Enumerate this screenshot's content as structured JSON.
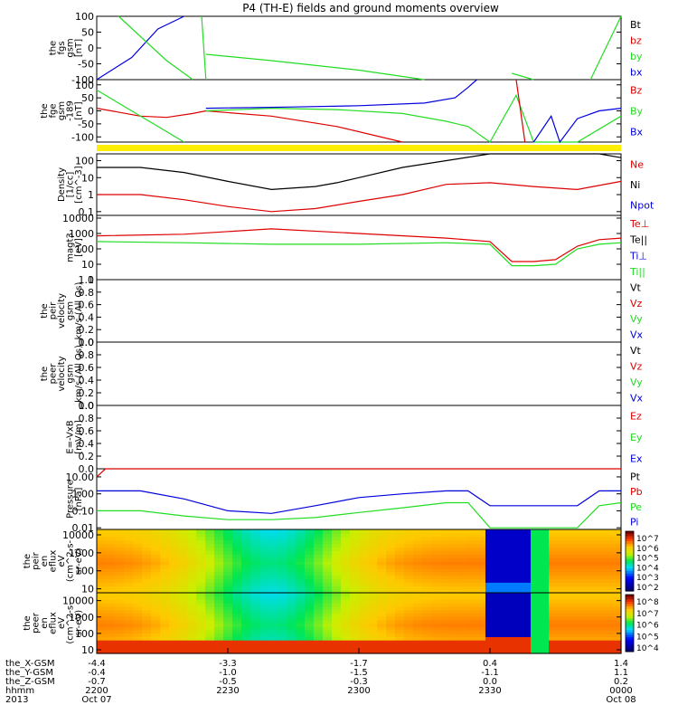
{
  "title": "P4 (TH-E) fields and ground moments overview",
  "colors": {
    "black": "#000000",
    "red": "#dd0000",
    "green": "#22dd22",
    "blue": "#0000dd",
    "yellow": "#ffee00"
  },
  "panels": [
    {
      "ylabel": [
        "the",
        "fgs",
        "gsm",
        "[nT]"
      ],
      "yticks": [
        {
          "v": 100,
          "t": "100"
        },
        {
          "v": 50,
          "t": "50"
        },
        {
          "v": 0,
          "t": "0"
        },
        {
          "v": -50,
          "t": "-50"
        },
        {
          "v": -100,
          "t": "-100"
        }
      ],
      "ylim": [
        -100,
        100
      ],
      "log": false,
      "legend": [
        {
          "text": "Bt",
          "color": "black"
        },
        {
          "text": "bz",
          "color": "red"
        },
        {
          "text": "by",
          "color": "green"
        },
        {
          "text": "bx",
          "color": "blue"
        }
      ]
    },
    {
      "ylabel": [
        "the",
        "fge",
        "gsm",
        "-189",
        "[nT]"
      ],
      "yticks": [
        {
          "v": 100,
          "t": "100"
        },
        {
          "v": 50,
          "t": "50"
        },
        {
          "v": 0,
          "t": "0"
        },
        {
          "v": -50,
          "t": "-50"
        },
        {
          "v": -100,
          "t": "-100"
        }
      ],
      "ylim": [
        -120,
        120
      ],
      "log": false,
      "legend": [
        {
          "text": "Bz",
          "color": "red"
        },
        {
          "text": "By",
          "color": "green"
        },
        {
          "text": "Bx",
          "color": "blue"
        }
      ]
    },
    {
      "ylabel": [
        "Density",
        "[1/cc]",
        "[cm^-3]"
      ],
      "yticks": [
        {
          "v": 100,
          "t": "100"
        },
        {
          "v": 10,
          "t": "10"
        },
        {
          "v": 1,
          "t": "1"
        },
        {
          "v": 0.1,
          "t": "0.1"
        }
      ],
      "ylim": [
        0.06,
        250
      ],
      "log": true,
      "legend": [
        {
          "text": "Ne",
          "color": "red"
        },
        {
          "text": "Ni",
          "color": "black"
        },
        {
          "text": "Npot",
          "color": "blue"
        }
      ]
    },
    {
      "ylabel": [
        "magt3",
        "[eV]"
      ],
      "yticks": [
        {
          "v": 10000,
          "t": "10000"
        },
        {
          "v": 1000,
          "t": "1000"
        },
        {
          "v": 100,
          "t": "100"
        },
        {
          "v": 10,
          "t": "10"
        },
        {
          "v": 1,
          "t": "1"
        }
      ],
      "ylim": [
        1,
        15000
      ],
      "log": true,
      "legend": [
        {
          "text": "Te⊥",
          "color": "red"
        },
        {
          "text": "Te||",
          "color": "black"
        },
        {
          "text": "Ti⊥",
          "color": "blue"
        },
        {
          "text": "Ti||",
          "color": "green"
        }
      ]
    },
    {
      "ylabel": [
        "the",
        "peir",
        "velocity",
        "gsm",
        "km/s (All Qs)"
      ],
      "yticks": [
        {
          "v": 1,
          "t": "1.0"
        },
        {
          "v": 0.8,
          "t": "0.8"
        },
        {
          "v": 0.6,
          "t": "0.6"
        },
        {
          "v": 0.4,
          "t": "0.4"
        },
        {
          "v": 0.2,
          "t": "0.2"
        },
        {
          "v": 0,
          "t": "0.0"
        }
      ],
      "ylim": [
        0,
        1
      ],
      "log": false,
      "legend": [
        {
          "text": "Vt",
          "color": "black"
        },
        {
          "text": "Vz",
          "color": "red"
        },
        {
          "text": "Vy",
          "color": "green"
        },
        {
          "text": "Vx",
          "color": "blue"
        }
      ]
    },
    {
      "ylabel": [
        "the",
        "peer",
        "velocity",
        "gsm",
        "km/s (All Qs)"
      ],
      "yticks": [
        {
          "v": 1,
          "t": "1.0"
        },
        {
          "v": 0.8,
          "t": "0.8"
        },
        {
          "v": 0.6,
          "t": "0.6"
        },
        {
          "v": 0.4,
          "t": "0.4"
        },
        {
          "v": 0.2,
          "t": "0.2"
        },
        {
          "v": 0,
          "t": "0.0"
        }
      ],
      "ylim": [
        0,
        1
      ],
      "log": false,
      "legend": [
        {
          "text": "Vt",
          "color": "black"
        },
        {
          "text": "Vz",
          "color": "red"
        },
        {
          "text": "Vy",
          "color": "green"
        },
        {
          "text": "Vx",
          "color": "blue"
        }
      ]
    },
    {
      "ylabel": [
        "E=-VxB",
        "[mV/m]"
      ],
      "yticks": [
        {
          "v": 1,
          "t": "1.0"
        },
        {
          "v": 0.8,
          "t": "0.8"
        },
        {
          "v": 0.6,
          "t": "0.6"
        },
        {
          "v": 0.4,
          "t": "0.4"
        },
        {
          "v": 0.2,
          "t": "0.2"
        },
        {
          "v": 0,
          "t": "0.0"
        }
      ],
      "ylim": [
        0,
        1
      ],
      "log": false,
      "legend": [
        {
          "text": "Ez",
          "color": "red"
        },
        {
          "text": "Ey",
          "color": "green"
        },
        {
          "text": "Ex",
          "color": "blue"
        }
      ]
    },
    {
      "ylabel": [
        "Pressure",
        "[nPa]"
      ],
      "yticks": [
        {
          "v": 10,
          "t": "10.00"
        },
        {
          "v": 1,
          "t": "1.00"
        },
        {
          "v": 0.1,
          "t": "0.10"
        },
        {
          "v": 0.01,
          "t": "0.01"
        }
      ],
      "ylim": [
        0.008,
        30
      ],
      "log": true,
      "legend": [
        {
          "text": "Pt",
          "color": "black"
        },
        {
          "text": "Pb",
          "color": "red"
        },
        {
          "text": "Pe",
          "color": "green"
        },
        {
          "text": "Pi",
          "color": "blue"
        }
      ]
    },
    {
      "ylabel": [
        "the",
        "peir",
        "en",
        "eflux",
        "eV",
        "(cm^2-s-",
        "sr-eV)"
      ],
      "yticks": [
        {
          "v": 10000,
          "t": "10000"
        },
        {
          "v": 1000,
          "t": "1000"
        },
        {
          "v": 100,
          "t": "100"
        },
        {
          "v": 10,
          "t": "10"
        }
      ],
      "ylim": [
        6,
        20000
      ],
      "log": true,
      "spectrogram": true,
      "colorbar": [
        "10^7",
        "10^6",
        "10^5",
        "10^4",
        "10^3",
        "10^2"
      ],
      "legend": []
    },
    {
      "ylabel": [
        "the",
        "peer",
        "en",
        "eflux",
        "eV",
        "(cm^2-s-",
        "sr-eV)"
      ],
      "yticks": [
        {
          "v": 10000,
          "t": "10000"
        },
        {
          "v": 1000,
          "t": "1000"
        },
        {
          "v": 100,
          "t": "100"
        },
        {
          "v": 10,
          "t": "10"
        }
      ],
      "ylim": [
        6,
        30000
      ],
      "log": true,
      "spectrogram": true,
      "colorbar": [
        "10^8",
        "10^7",
        "10^6",
        "10^5",
        "10^4"
      ],
      "legend": []
    }
  ],
  "xaxis": {
    "rows": [
      {
        "label": "the_X-GSM",
        "values": [
          "-4.4",
          "-3.3",
          "-1.7",
          "0.4",
          "1.4"
        ]
      },
      {
        "label": "the_Y-GSM",
        "values": [
          "-0.4",
          "-1.0",
          "-1.5",
          "-1.1",
          "1.1"
        ]
      },
      {
        "label": "the_Z-GSM",
        "values": [
          "-0.7",
          "-0.5",
          "-0.3",
          "0.0",
          "0.2"
        ]
      },
      {
        "label": "hhmm",
        "values": [
          "2200",
          "2230",
          "2300",
          "2330",
          "0000"
        ]
      },
      {
        "label": "2013",
        "values": [
          "Oct 07",
          "",
          "",
          "",
          "Oct 08"
        ]
      }
    ],
    "tick_labels_hhmm": [
      "2200",
      "2230",
      "2300",
      "2330",
      "0000"
    ]
  },
  "chart_data": {
    "type": "line",
    "title": "P4 (TH-E) fields and ground moments overview",
    "x_axis": {
      "label": "hhmm",
      "ticks": [
        "2200",
        "2230",
        "2300",
        "2330",
        "0000"
      ],
      "range": [
        "2013-10-07 22:00",
        "2013-10-08 00:00"
      ]
    },
    "series": [
      {
        "panel": "density",
        "name": "Ni",
        "color": "black",
        "x": [
          0,
          10,
          20,
          30,
          40,
          50,
          55,
          60,
          70,
          80,
          90,
          100,
          110,
          115,
          120
        ],
        "values": [
          40,
          40,
          20,
          6,
          2,
          3,
          5,
          10,
          40,
          100,
          250,
          250,
          250,
          250,
          150
        ]
      },
      {
        "panel": "density",
        "name": "Ne",
        "color": "red",
        "x": [
          0,
          10,
          20,
          30,
          40,
          50,
          60,
          70,
          80,
          90,
          100,
          110,
          120
        ],
        "values": [
          1.0,
          1.0,
          0.5,
          0.2,
          0.1,
          0.15,
          0.4,
          1.0,
          4,
          5,
          3,
          2,
          6
        ]
      },
      {
        "panel": "magt3",
        "name": "Te⊥",
        "color": "red",
        "x": [
          0,
          20,
          40,
          60,
          80,
          90,
          95,
          100,
          105,
          110,
          115,
          120
        ],
        "values": [
          700,
          900,
          2000,
          1000,
          500,
          300,
          15,
          15,
          20,
          150,
          400,
          500
        ]
      },
      {
        "panel": "magt3",
        "name": "Ti||",
        "color": "green",
        "x": [
          0,
          20,
          40,
          60,
          80,
          90,
          95,
          100,
          105,
          110,
          115,
          120
        ],
        "values": [
          300,
          250,
          200,
          200,
          250,
          200,
          8,
          8,
          10,
          100,
          200,
          250
        ]
      },
      {
        "panel": "pressure",
        "name": "Pi",
        "color": "blue",
        "x": [
          0,
          10,
          20,
          30,
          40,
          50,
          60,
          70,
          80,
          85,
          90,
          100,
          110,
          115,
          120
        ],
        "values": [
          1.5,
          1.5,
          0.5,
          0.1,
          0.07,
          0.2,
          0.6,
          1.0,
          1.5,
          1.5,
          0.2,
          0.2,
          0.2,
          1.5,
          1.5
        ]
      },
      {
        "panel": "pressure",
        "name": "Pe",
        "color": "green",
        "x": [
          0,
          10,
          20,
          30,
          40,
          50,
          60,
          70,
          80,
          85,
          90,
          100,
          110,
          115,
          120
        ],
        "values": [
          0.1,
          0.1,
          0.05,
          0.03,
          0.03,
          0.04,
          0.08,
          0.15,
          0.3,
          0.3,
          0.01,
          0.01,
          0.01,
          0.2,
          0.3
        ]
      },
      {
        "panel": "pressure",
        "name": "Pb",
        "color": "red",
        "x": [
          0,
          2,
          120
        ],
        "values": [
          10,
          30,
          30
        ]
      }
    ]
  }
}
